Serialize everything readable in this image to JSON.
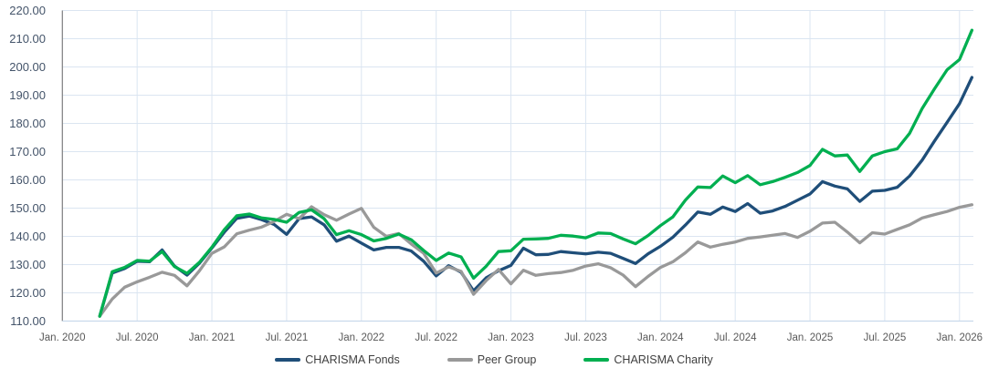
{
  "y_axis": {
    "tick_labels": [
      "220.00",
      "210.00",
      "200.00",
      "190.00",
      "180.00",
      "170.00",
      "160.00",
      "150.00",
      "140.00",
      "130.00",
      "120.00",
      "110.00"
    ],
    "min": 110,
    "max": 220,
    "step": 10,
    "text_color": "#44546a"
  },
  "x_axis": {
    "tick_labels": [
      "Jan. 2020",
      "Jul. 2020",
      "Jan. 2021",
      "Jul. 2021",
      "Jan. 2022",
      "Jul. 2022",
      "Jan. 2023",
      "Jul. 2023",
      "Jan. 2024",
      "Jul. 2024",
      "Jan. 2025",
      "Jul. 2025",
      "Jan. 2026"
    ],
    "text_color": "#595959"
  },
  "colors": {
    "background": "#ffffff",
    "gridline": "#dbe5f1",
    "y_axis_line": "#7f7f7f",
    "x_axis_line": "#c9d9ec",
    "legend_text": "#404040"
  },
  "legend": {
    "items": [
      {
        "label": "CHARISMA Fonds",
        "color": "#1f4e79"
      },
      {
        "label": "Peer Group",
        "color": "#999999"
      },
      {
        "label": "CHARISMA Charity",
        "color": "#00af50"
      }
    ]
  },
  "chart_data": {
    "type": "line",
    "title": "",
    "xlabel": "",
    "ylabel": "",
    "ylim": [
      110,
      220
    ],
    "grid": true,
    "legend_position": "bottom",
    "x_tick_labels": [
      "Jan. 2020",
      "Jul. 2020",
      "Jan. 2021",
      "Jul. 2021",
      "Jan. 2022",
      "Jul. 2022",
      "Jan. 2023",
      "Jul. 2023",
      "Jan. 2024",
      "Jul. 2024",
      "Jan. 2025",
      "Jul. 2025",
      "Jan. 2026"
    ],
    "start_month": "2020-04",
    "frequency": "monthly",
    "series": [
      {
        "name": "CHARISMA Fonds",
        "color": "#1f4e79",
        "values": [
          111.7,
          127.0,
          128.6,
          131.2,
          131.0,
          135.2,
          129.5,
          126.3,
          130.5,
          135.9,
          141.5,
          146.4,
          147.2,
          145.9,
          144.2,
          140.7,
          146.3,
          146.9,
          144.1,
          138.3,
          140.1,
          137.6,
          135.2,
          136.1,
          136.1,
          134.8,
          131.2,
          126.0,
          129.6,
          127.3,
          120.7,
          125.3,
          127.8,
          129.7,
          135.8,
          133.5,
          133.6,
          134.6,
          134.2,
          133.8,
          134.4,
          134.0,
          132.2,
          130.4,
          133.8,
          136.5,
          139.7,
          144.0,
          148.6,
          147.8,
          150.4,
          148.8,
          151.6,
          148.2,
          149.0,
          150.6,
          152.8,
          155.0,
          159.4,
          157.8,
          156.8,
          152.4,
          156.0,
          156.3,
          157.4,
          161.4,
          167.0,
          173.8,
          180.4,
          187.0,
          196.3
        ]
      },
      {
        "name": "Peer Group",
        "color": "#999999",
        "values": [
          111.7,
          117.8,
          122.0,
          123.9,
          125.5,
          127.3,
          126.2,
          122.5,
          127.8,
          134.0,
          136.3,
          140.9,
          142.2,
          143.3,
          145.3,
          147.8,
          146.3,
          150.5,
          147.7,
          145.7,
          147.9,
          149.9,
          143.2,
          140.0,
          141.0,
          137.3,
          134.0,
          127.0,
          129.2,
          127.6,
          119.5,
          124.3,
          128.3,
          123.2,
          128.0,
          126.2,
          126.8,
          127.2,
          128.0,
          129.5,
          130.3,
          128.9,
          126.3,
          122.2,
          125.8,
          129.0,
          131.0,
          134.2,
          138.0,
          136.2,
          137.2,
          138.0,
          139.3,
          139.8,
          140.4,
          141.0,
          139.6,
          141.8,
          144.7,
          145.0,
          141.5,
          137.7,
          141.3,
          140.8,
          142.5,
          144.1,
          146.5,
          147.7,
          148.8,
          150.3,
          151.2
        ]
      },
      {
        "name": "CHARISMA Charity",
        "color": "#00af50",
        "values": [
          111.7,
          127.5,
          129.0,
          131.5,
          131.2,
          134.6,
          129.3,
          126.9,
          130.8,
          136.2,
          142.4,
          147.3,
          147.9,
          146.5,
          146.0,
          145.0,
          148.5,
          149.4,
          146.3,
          140.6,
          142.0,
          140.6,
          138.4,
          139.3,
          140.8,
          138.8,
          135.0,
          131.5,
          134.1,
          132.7,
          125.2,
          129.4,
          134.6,
          134.9,
          139.0,
          139.1,
          139.3,
          140.4,
          140.1,
          139.5,
          141.2,
          141.0,
          139.1,
          137.4,
          140.3,
          143.8,
          146.9,
          152.8,
          157.5,
          157.3,
          161.4,
          159.0,
          161.5,
          158.3,
          159.4,
          160.9,
          162.6,
          165.1,
          170.8,
          168.5,
          168.8,
          163.0,
          168.5,
          170.0,
          171.0,
          176.5,
          185.3,
          192.3,
          199.0,
          202.6,
          213.0
        ]
      }
    ]
  }
}
